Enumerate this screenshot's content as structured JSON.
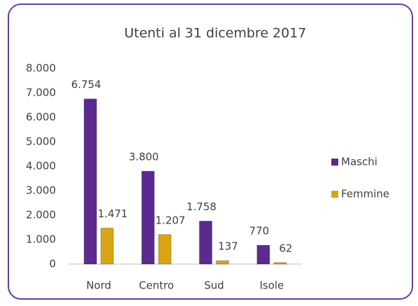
{
  "chart_data": {
    "type": "bar",
    "title": "Utenti al 31 dicembre 2017",
    "categories": [
      "Nord",
      "Centro",
      "Sud",
      "Isole"
    ],
    "series": [
      {
        "name": "Maschi",
        "color": "#5b2a8e",
        "values": [
          6754,
          3800,
          1758,
          770
        ],
        "value_labels": [
          "6.754",
          "3.800",
          "1.758",
          "770"
        ]
      },
      {
        "name": "Femmine",
        "color": "#d9a514",
        "values": [
          1471,
          1207,
          137,
          62
        ],
        "value_labels": [
          "1.471",
          "1.207",
          "137",
          "62"
        ]
      }
    ],
    "ylim": [
      0,
      8000
    ],
    "yticks": [
      0,
      {
        "value": 1000,
        "label": "1.000"
      },
      {
        "value": 2000,
        "label": "2.000"
      },
      {
        "value": 3000,
        "label": "3.000"
      },
      {
        "value": 4000,
        "label": "4.000"
      },
      {
        "value": 5000,
        "label": "5.000"
      },
      {
        "value": 6000,
        "label": "6.000"
      },
      {
        "value": 7000,
        "label": "7.000"
      },
      {
        "value": 8000,
        "label": "8.000"
      }
    ],
    "legend": "right",
    "grid": false
  }
}
